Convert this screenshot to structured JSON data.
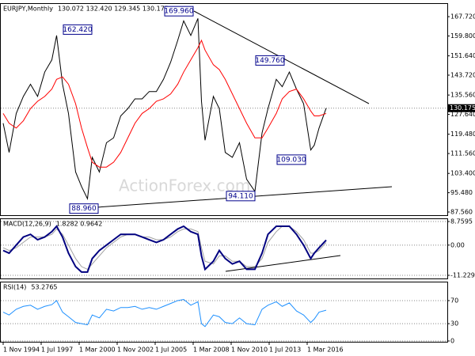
{
  "chart_data": [
    {
      "type": "line",
      "title": "EURJPY,Monthly",
      "subtitle": "130.072 132.420 129.345 130.175",
      "watermark": "ActionForex.com",
      "x": [
        "1994-11",
        "1995-04",
        "1995-10",
        "1996-04",
        "1996-10",
        "1997-04",
        "1997-10",
        "1998-04",
        "1998-08",
        "1999-01",
        "1999-06",
        "1999-12",
        "2000-05",
        "2000-10",
        "2001-02",
        "2001-08",
        "2002-02",
        "2002-08",
        "2003-02",
        "2003-08",
        "2004-02",
        "2004-08",
        "2005-02",
        "2005-08",
        "2006-02",
        "2006-08",
        "2007-02",
        "2007-07",
        "2008-01",
        "2008-07",
        "2008-10",
        "2009-01",
        "2009-08",
        "2010-01",
        "2010-06",
        "2010-12",
        "2011-06",
        "2011-12",
        "2012-07",
        "2013-01",
        "2013-06",
        "2014-01",
        "2014-06",
        "2014-12",
        "2015-06",
        "2015-12",
        "2016-06",
        "2016-09",
        "2017-01",
        "2017-07"
      ],
      "series": [
        {
          "color": "#000000",
          "values": [
            124,
            112,
            128,
            135,
            140,
            135,
            145,
            150,
            160,
            140,
            128,
            104,
            98,
            93,
            110,
            104,
            116,
            118,
            127,
            130,
            134,
            134,
            137,
            137,
            142,
            149,
            158,
            166,
            160,
            167,
            133,
            117,
            135,
            130,
            112,
            110,
            116,
            101,
            96,
            120,
            130,
            142,
            139,
            145,
            138,
            132,
            113,
            115,
            122,
            130.175
          ]
        },
        {
          "color": "#ff0000",
          "values": [
            128,
            124,
            122,
            125,
            130,
            133,
            135,
            138,
            142,
            143,
            140,
            132,
            122,
            114,
            108,
            106,
            106,
            108,
            112,
            118,
            124,
            128,
            130,
            133,
            134,
            136,
            140,
            145,
            150,
            155,
            158,
            154,
            148,
            146,
            142,
            136,
            130,
            124,
            118,
            118,
            122,
            128,
            134,
            137,
            138,
            134,
            129,
            127,
            127,
            128
          ]
        }
      ],
      "annotations": [
        {
          "value": 169.96,
          "label": "169.960"
        },
        {
          "value": 162.42,
          "label": "162.420"
        },
        {
          "value": 149.76,
          "label": "149.760"
        },
        {
          "value": 109.03,
          "label": "109.030"
        },
        {
          "value": 94.11,
          "label": "94.110"
        },
        {
          "value": 88.96,
          "label": "88.960"
        }
      ],
      "last": {
        "value": 130.175,
        "label": "130.175"
      },
      "ylim": [
        86.26,
        173.26
      ],
      "yticks": [
        {
          "value": 167.72,
          "label": "167.720"
        },
        {
          "value": 159.8,
          "label": "159.800"
        },
        {
          "value": 151.64,
          "label": "151.640"
        },
        {
          "value": 143.72,
          "label": "143.720"
        },
        {
          "value": 135.56,
          "label": "135.560"
        },
        {
          "value": 127.64,
          "label": "127.640"
        },
        {
          "value": 119.48,
          "label": "119.480"
        },
        {
          "value": 111.56,
          "label": "111.560"
        },
        {
          "value": 103.4,
          "label": "103.400"
        },
        {
          "value": 95.48,
          "label": "95.480"
        },
        {
          "value": 87.56,
          "label": "87.560"
        }
      ],
      "grid": false
    },
    {
      "type": "line",
      "title": "MACD(12,26,9)",
      "subtitle": "1.8282 0.9642",
      "x": [
        "1994-11",
        "1995-04",
        "1995-10",
        "1996-04",
        "1996-10",
        "1997-04",
        "1997-10",
        "1998-04",
        "1998-08",
        "1999-01",
        "1999-06",
        "1999-12",
        "2000-05",
        "2000-10",
        "2001-02",
        "2001-08",
        "2002-02",
        "2002-08",
        "2003-02",
        "2003-08",
        "2004-02",
        "2004-08",
        "2005-02",
        "2005-08",
        "2006-02",
        "2006-08",
        "2007-02",
        "2007-07",
        "2008-01",
        "2008-07",
        "2008-10",
        "2009-01",
        "2009-08",
        "2010-01",
        "2010-06",
        "2010-12",
        "2011-06",
        "2011-12",
        "2012-07",
        "2013-01",
        "2013-06",
        "2014-01",
        "2014-06",
        "2014-12",
        "2015-06",
        "2015-12",
        "2016-06",
        "2016-09",
        "2017-01",
        "2017-07"
      ],
      "series": [
        {
          "color": "#a0a0a0",
          "values": [
            -1,
            -2,
            -1,
            1,
            3,
            3,
            3,
            4,
            6,
            4,
            0,
            -5,
            -8,
            -9,
            -7,
            -4,
            -1,
            1,
            3,
            4,
            4,
            3,
            3,
            2,
            2,
            3,
            5,
            6,
            6,
            5,
            -1,
            -6,
            -7,
            -4,
            -4,
            -6,
            -6,
            -8,
            -8,
            -5,
            1,
            5,
            7,
            7,
            5,
            2,
            -3,
            -3,
            -2,
            0.9642
          ]
        },
        {
          "color": "#000080",
          "values": [
            -2,
            -3,
            0,
            3,
            4,
            2,
            3,
            5,
            7,
            3,
            -3,
            -8,
            -10,
            -10,
            -5,
            -2,
            0,
            2,
            4,
            4,
            4,
            3,
            2,
            1,
            2,
            4,
            6,
            7,
            5,
            4,
            -4,
            -9,
            -6,
            -2,
            -5,
            -7,
            -6,
            -9,
            -9,
            -3,
            4,
            7,
            7,
            7,
            4,
            0,
            -5,
            -3,
            -1,
            1.8282
          ]
        }
      ],
      "ylim": [
        -12.4,
        9.94
      ],
      "yticks": [
        {
          "value": 8.7595,
          "label": "8.7595"
        },
        {
          "value": 0,
          "label": "0.00"
        },
        {
          "value": -11.2299,
          "label": "-11.2299"
        }
      ],
      "grid": true
    },
    {
      "type": "line",
      "title": "RSI(14)",
      "subtitle": "53.2765",
      "x": [
        "1994-11",
        "1995-04",
        "1995-10",
        "1996-04",
        "1996-10",
        "1997-04",
        "1997-10",
        "1998-04",
        "1998-08",
        "1999-01",
        "1999-06",
        "1999-12",
        "2000-05",
        "2000-10",
        "2001-02",
        "2001-08",
        "2002-02",
        "2002-08",
        "2003-02",
        "2003-08",
        "2004-02",
        "2004-08",
        "2005-02",
        "2005-08",
        "2006-02",
        "2006-08",
        "2007-02",
        "2007-07",
        "2008-01",
        "2008-07",
        "2008-10",
        "2009-01",
        "2009-08",
        "2010-01",
        "2010-06",
        "2010-12",
        "2011-06",
        "2011-12",
        "2012-07",
        "2013-01",
        "2013-06",
        "2014-01",
        "2014-06",
        "2014-12",
        "2015-06",
        "2015-12",
        "2016-06",
        "2016-09",
        "2017-01",
        "2017-07"
      ],
      "series": [
        {
          "color": "#1e90ff",
          "values": [
            50,
            45,
            55,
            60,
            62,
            55,
            60,
            63,
            70,
            50,
            42,
            32,
            30,
            28,
            45,
            40,
            55,
            52,
            58,
            58,
            60,
            55,
            58,
            55,
            60,
            65,
            70,
            72,
            62,
            68,
            30,
            25,
            45,
            42,
            32,
            30,
            40,
            30,
            28,
            55,
            62,
            68,
            60,
            66,
            52,
            45,
            32,
            38,
            50,
            53.2765
          ]
        }
      ],
      "ylim": [
        -1.4,
        102.9
      ],
      "yticks": [
        70,
        30,
        0
      ],
      "grid": true,
      "xticks": [
        {
          "value": "1994-11",
          "label": "1 Nov 1994"
        },
        {
          "value": "1997-07",
          "label": "1 Jul 1997"
        },
        {
          "value": "2000-03",
          "label": "1 Mar 2000"
        },
        {
          "value": "2002-11",
          "label": "1 Nov 2002"
        },
        {
          "value": "2005-07",
          "label": "1 Jul 2005"
        },
        {
          "value": "2008-03",
          "label": "1 Mar 2008"
        },
        {
          "value": "2010-11",
          "label": "1 Nov 2010"
        },
        {
          "value": "2013-07",
          "label": "1 Jul 2013"
        },
        {
          "value": "2016-03",
          "label": "1 Mar 2016"
        }
      ]
    }
  ]
}
